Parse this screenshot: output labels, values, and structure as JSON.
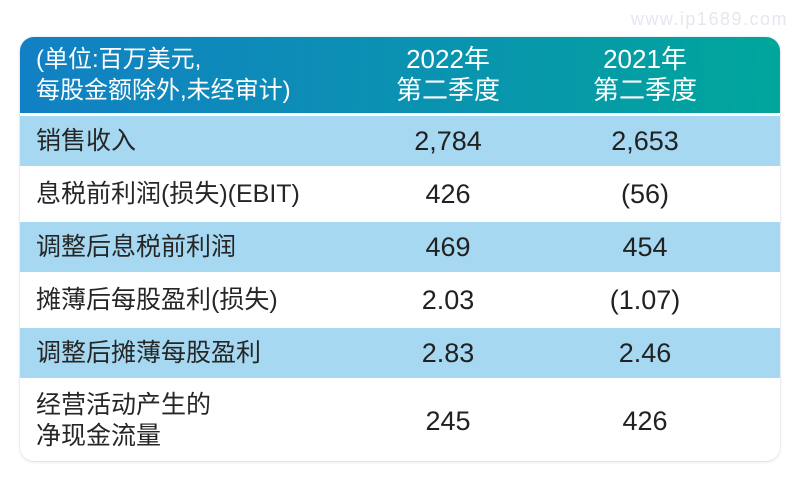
{
  "watermark": "www.ip1689.com",
  "colors": {
    "header_gradient_left": "#1280c4",
    "header_gradient_right": "#00a69b",
    "row_alt_blue": "#a6d8f1",
    "row_white": "#ffffff",
    "header_text": "#ffffff",
    "body_text": "#262626",
    "watermark_text": "#e6e6f0"
  },
  "table": {
    "header": {
      "unit_note_line1": "(单位:百万美元,",
      "unit_note_line2": "每股金额除外,未经审计)",
      "col_2022_line1": "2022年",
      "col_2022_line2": "第二季度",
      "col_2021_line1": "2021年",
      "col_2021_line2": "第二季度"
    },
    "rows": [
      {
        "label": "销售收入",
        "q2_2022": "2,784",
        "q2_2021": "2,653"
      },
      {
        "label": "息税前利润(损失)(EBIT)",
        "q2_2022": "426",
        "q2_2021": "(56)"
      },
      {
        "label": "调整后息税前利润",
        "q2_2022": "469",
        "q2_2021": "454"
      },
      {
        "label": "摊薄后每股盈利(损失)",
        "q2_2022": "2.03",
        "q2_2021": "(1.07)"
      },
      {
        "label": "调整后摊薄每股盈利",
        "q2_2022": "2.83",
        "q2_2021": "2.46"
      },
      {
        "label": "经营活动产生的\n净现金流量",
        "q2_2022": "245",
        "q2_2021": "426"
      }
    ]
  }
}
